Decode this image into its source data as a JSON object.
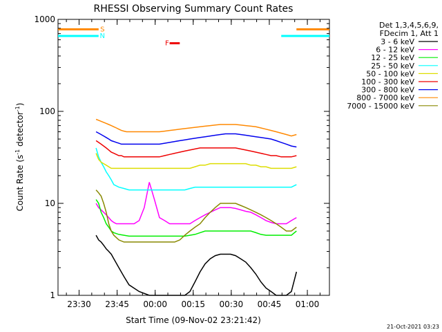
{
  "chart_data": {
    "type": "line",
    "title": "RHESSI Observing Summary Count Rates",
    "xlabel": "Start Time (09-Nov-02 23:21:42)",
    "ylabel_main": "Count Rate (s",
    "ylabel_sup1": "-1",
    "ylabel_mid": " detector",
    "ylabel_sup2": "-1",
    "ylabel_end": ")",
    "x_unit": "minutes after 23:21:42",
    "xlim": [
      0,
      107
    ],
    "ylim": [
      1,
      1000
    ],
    "yscale": "log",
    "x_ticks": [
      {
        "label": "23:30",
        "value": 8.3
      },
      {
        "label": "23:45",
        "value": 23.3
      },
      {
        "label": "00:00",
        "value": 38.3
      },
      {
        "label": "00:15",
        "value": 53.3
      },
      {
        "label": "00:30",
        "value": 68.3
      },
      {
        "label": "00:45",
        "value": 83.3
      },
      {
        "label": "01:00",
        "value": 98.3
      }
    ],
    "y_ticks": [
      {
        "label": "1",
        "value": 1
      },
      {
        "label": "10",
        "value": 10
      },
      {
        "label": "100",
        "value": 100
      },
      {
        "label": "1000",
        "value": 1000
      }
    ],
    "legend_header": [
      "Det 1,3,4,5,6,9,",
      "FDecim 1, Att 1"
    ],
    "legend_placement": "right",
    "series": [
      {
        "name": "3 - 6 keV",
        "color": "#000000",
        "x": [
          15,
          16,
          17,
          18,
          19,
          20,
          21,
          22,
          24,
          26,
          28,
          32,
          36,
          40,
          45,
          50,
          52,
          54,
          56,
          58,
          60,
          62,
          64,
          66,
          68,
          70,
          72,
          74,
          76,
          78,
          80,
          82,
          84,
          86,
          88,
          90,
          92,
          94
        ],
        "y": [
          4.5,
          4,
          3.8,
          3.5,
          3.2,
          3,
          2.8,
          2.5,
          2,
          1.6,
          1.3,
          1.1,
          1.0,
          1.0,
          1.0,
          1.0,
          1.1,
          1.4,
          1.8,
          2.2,
          2.5,
          2.7,
          2.8,
          2.8,
          2.8,
          2.7,
          2.5,
          2.3,
          2.0,
          1.7,
          1.4,
          1.2,
          1.1,
          1.0,
          1.0,
          1.0,
          1.1,
          1.8
        ]
      },
      {
        "name": "6 - 12 keV",
        "color": "#ff00ff",
        "x": [
          15,
          16,
          17,
          18,
          19,
          20,
          21,
          22,
          23,
          24,
          25,
          26,
          28,
          30,
          32,
          34,
          36,
          38,
          40,
          42,
          44,
          46,
          48,
          50,
          52,
          54,
          56,
          58,
          60,
          62,
          64,
          66,
          68,
          70,
          72,
          74,
          76,
          78,
          80,
          82,
          84,
          86,
          88,
          90,
          92,
          94
        ],
        "y": [
          10,
          9,
          8.5,
          8,
          7.5,
          7,
          6.5,
          6.2,
          6,
          6,
          6,
          6,
          6,
          6,
          6.5,
          9,
          17,
          11,
          7,
          6.5,
          6,
          6,
          6,
          6,
          6,
          6.5,
          7,
          7.5,
          8,
          8.5,
          9,
          9,
          9,
          8.8,
          8.5,
          8.2,
          8,
          7.5,
          7,
          6.5,
          6.2,
          6,
          6,
          6,
          6.5,
          7
        ]
      },
      {
        "name": "12 - 25 keV",
        "color": "#00ee00",
        "x": [
          15,
          16,
          17,
          18,
          19,
          20,
          21,
          22,
          24,
          26,
          28,
          30,
          35,
          40,
          45,
          50,
          52,
          54,
          56,
          58,
          60,
          62,
          64,
          66,
          68,
          70,
          72,
          74,
          76,
          78,
          80,
          82,
          84,
          86,
          88,
          90,
          92,
          94
        ],
        "y": [
          11,
          10,
          8,
          7,
          6,
          5.5,
          5,
          4.8,
          4.6,
          4.5,
          4.4,
          4.4,
          4.4,
          4.4,
          4.4,
          4.4,
          4.5,
          4.6,
          4.8,
          5,
          5,
          5,
          5,
          5,
          5,
          5,
          5,
          5,
          5,
          4.8,
          4.6,
          4.5,
          4.5,
          4.5,
          4.5,
          4.5,
          4.5,
          5
        ]
      },
      {
        "name": "25 - 50 keV",
        "color": "#00ffff",
        "x": [
          15,
          16,
          17,
          18,
          19,
          20,
          21,
          22,
          24,
          26,
          28,
          30,
          35,
          40,
          45,
          50,
          52,
          54,
          56,
          58,
          60,
          62,
          64,
          66,
          68,
          70,
          72,
          74,
          76,
          78,
          80,
          82,
          84,
          86,
          88,
          90,
          92,
          94
        ],
        "y": [
          40,
          32,
          28,
          25,
          22,
          20,
          18,
          16,
          15,
          14.5,
          14,
          14,
          14,
          14,
          14,
          14,
          14.5,
          15,
          15,
          15,
          15,
          15,
          15,
          15,
          15,
          15,
          15,
          15,
          15,
          15,
          15,
          15,
          15,
          15,
          15,
          15,
          15,
          16
        ]
      },
      {
        "name": "50 - 100 keV",
        "color": "#dddd00",
        "x": [
          15,
          16,
          17,
          18,
          19,
          20,
          21,
          22,
          23,
          24,
          25,
          26,
          27,
          28,
          30,
          35,
          40,
          45,
          50,
          52,
          54,
          56,
          58,
          60,
          62,
          64,
          66,
          68,
          70,
          72,
          74,
          76,
          78,
          80,
          82,
          84,
          86,
          88,
          90,
          92,
          94
        ],
        "y": [
          35,
          30,
          28,
          27,
          26,
          25,
          24,
          24,
          24,
          24,
          24,
          24,
          24,
          24,
          24,
          24,
          24,
          24,
          24,
          24,
          25,
          26,
          26,
          27,
          27,
          27,
          27,
          27,
          27,
          27,
          27,
          26,
          26,
          25,
          25,
          24,
          24,
          24,
          24,
          24,
          25
        ]
      },
      {
        "name": "100 - 300 keV",
        "color": "#ee0000",
        "x": [
          15,
          16,
          17,
          18,
          19,
          20,
          21,
          22,
          23,
          24,
          25,
          26,
          27,
          28,
          30,
          32,
          34,
          36,
          38,
          40,
          42,
          44,
          46,
          48,
          50,
          52,
          54,
          56,
          58,
          60,
          62,
          64,
          66,
          68,
          70,
          72,
          74,
          76,
          78,
          80,
          82,
          84,
          86,
          88,
          90,
          92,
          94
        ],
        "y": [
          48,
          46,
          44,
          42,
          40,
          38,
          36,
          35,
          34,
          33,
          33,
          32,
          32,
          32,
          32,
          32,
          32,
          32,
          32,
          32,
          33,
          34,
          35,
          36,
          37,
          38,
          39,
          40,
          40,
          40,
          40,
          40,
          40,
          40,
          40,
          39,
          38,
          37,
          36,
          35,
          34,
          33,
          33,
          32,
          32,
          32,
          33
        ]
      },
      {
        "name": "300 - 800 keV",
        "color": "#0000ee",
        "x": [
          15,
          16,
          17,
          18,
          19,
          20,
          21,
          22,
          23,
          24,
          25,
          26,
          27,
          28,
          30,
          32,
          34,
          36,
          38,
          40,
          42,
          44,
          46,
          48,
          50,
          52,
          54,
          56,
          58,
          60,
          62,
          64,
          66,
          68,
          70,
          72,
          74,
          76,
          78,
          80,
          82,
          84,
          86,
          88,
          90,
          92,
          94
        ],
        "y": [
          60,
          58,
          56,
          54,
          52,
          50,
          48,
          47,
          46,
          45,
          44,
          44,
          44,
          44,
          44,
          44,
          44,
          44,
          44,
          44,
          45,
          46,
          47,
          48,
          49,
          50,
          51,
          52,
          53,
          54,
          55,
          56,
          57,
          57,
          57,
          56,
          55,
          54,
          53,
          52,
          51,
          50,
          48,
          46,
          44,
          42,
          41
        ]
      },
      {
        "name": "800 - 7000 keV",
        "color": "#ff8800",
        "x": [
          15,
          16,
          17,
          18,
          19,
          20,
          21,
          22,
          23,
          24,
          25,
          26,
          27,
          28,
          30,
          32,
          34,
          36,
          38,
          40,
          42,
          44,
          46,
          48,
          50,
          52,
          54,
          56,
          58,
          60,
          62,
          64,
          66,
          68,
          70,
          72,
          74,
          76,
          78,
          80,
          82,
          84,
          86,
          88,
          90,
          92,
          94
        ],
        "y": [
          82,
          80,
          78,
          76,
          74,
          72,
          70,
          68,
          66,
          64,
          62,
          61,
          60,
          60,
          60,
          60,
          60,
          60,
          60,
          60,
          61,
          62,
          63,
          64,
          65,
          66,
          67,
          68,
          69,
          70,
          71,
          72,
          72,
          72,
          72,
          71,
          70,
          69,
          68,
          66,
          64,
          62,
          60,
          58,
          56,
          54,
          56
        ]
      },
      {
        "name": "7000 - 15000 keV",
        "color": "#888800",
        "x": [
          15,
          16,
          17,
          18,
          19,
          20,
          21,
          22,
          24,
          26,
          28,
          30,
          32,
          34,
          36,
          38,
          40,
          42,
          44,
          46,
          48,
          50,
          52,
          54,
          56,
          58,
          60,
          62,
          64,
          66,
          68,
          70,
          72,
          74,
          76,
          78,
          80,
          82,
          84,
          86,
          88,
          90,
          92,
          94
        ],
        "y": [
          14,
          13,
          12,
          10,
          8,
          6,
          5,
          4.5,
          4,
          3.8,
          3.8,
          3.8,
          3.8,
          3.8,
          3.8,
          3.8,
          3.8,
          3.8,
          3.8,
          3.8,
          4,
          4.5,
          5,
          5.5,
          6,
          7,
          8,
          9,
          10,
          10,
          10,
          10,
          9.5,
          9,
          8.5,
          8,
          7.5,
          7,
          6.5,
          6,
          5.5,
          5,
          5,
          5.5
        ]
      }
    ],
    "flags": [
      {
        "label": "S",
        "color": "#ff8800",
        "value": 780
      },
      {
        "label": "N",
        "color": "#00ffff",
        "value": 660
      },
      {
        "label": "F",
        "color": "#ee0000",
        "value": 550
      }
    ],
    "flag_bars": [
      {
        "series": "S",
        "color": "#ff8800",
        "ranges": [
          [
            0,
            16
          ],
          [
            94,
            107
          ]
        ]
      },
      {
        "series": "N",
        "color": "#00ffff",
        "ranges": [
          [
            0,
            16
          ],
          [
            88,
            107
          ]
        ]
      },
      {
        "series": "F",
        "color": "#ee0000",
        "ranges": [
          [
            44,
            48
          ]
        ]
      }
    ],
    "footer_date": "21-Oct-2021 03:23"
  }
}
